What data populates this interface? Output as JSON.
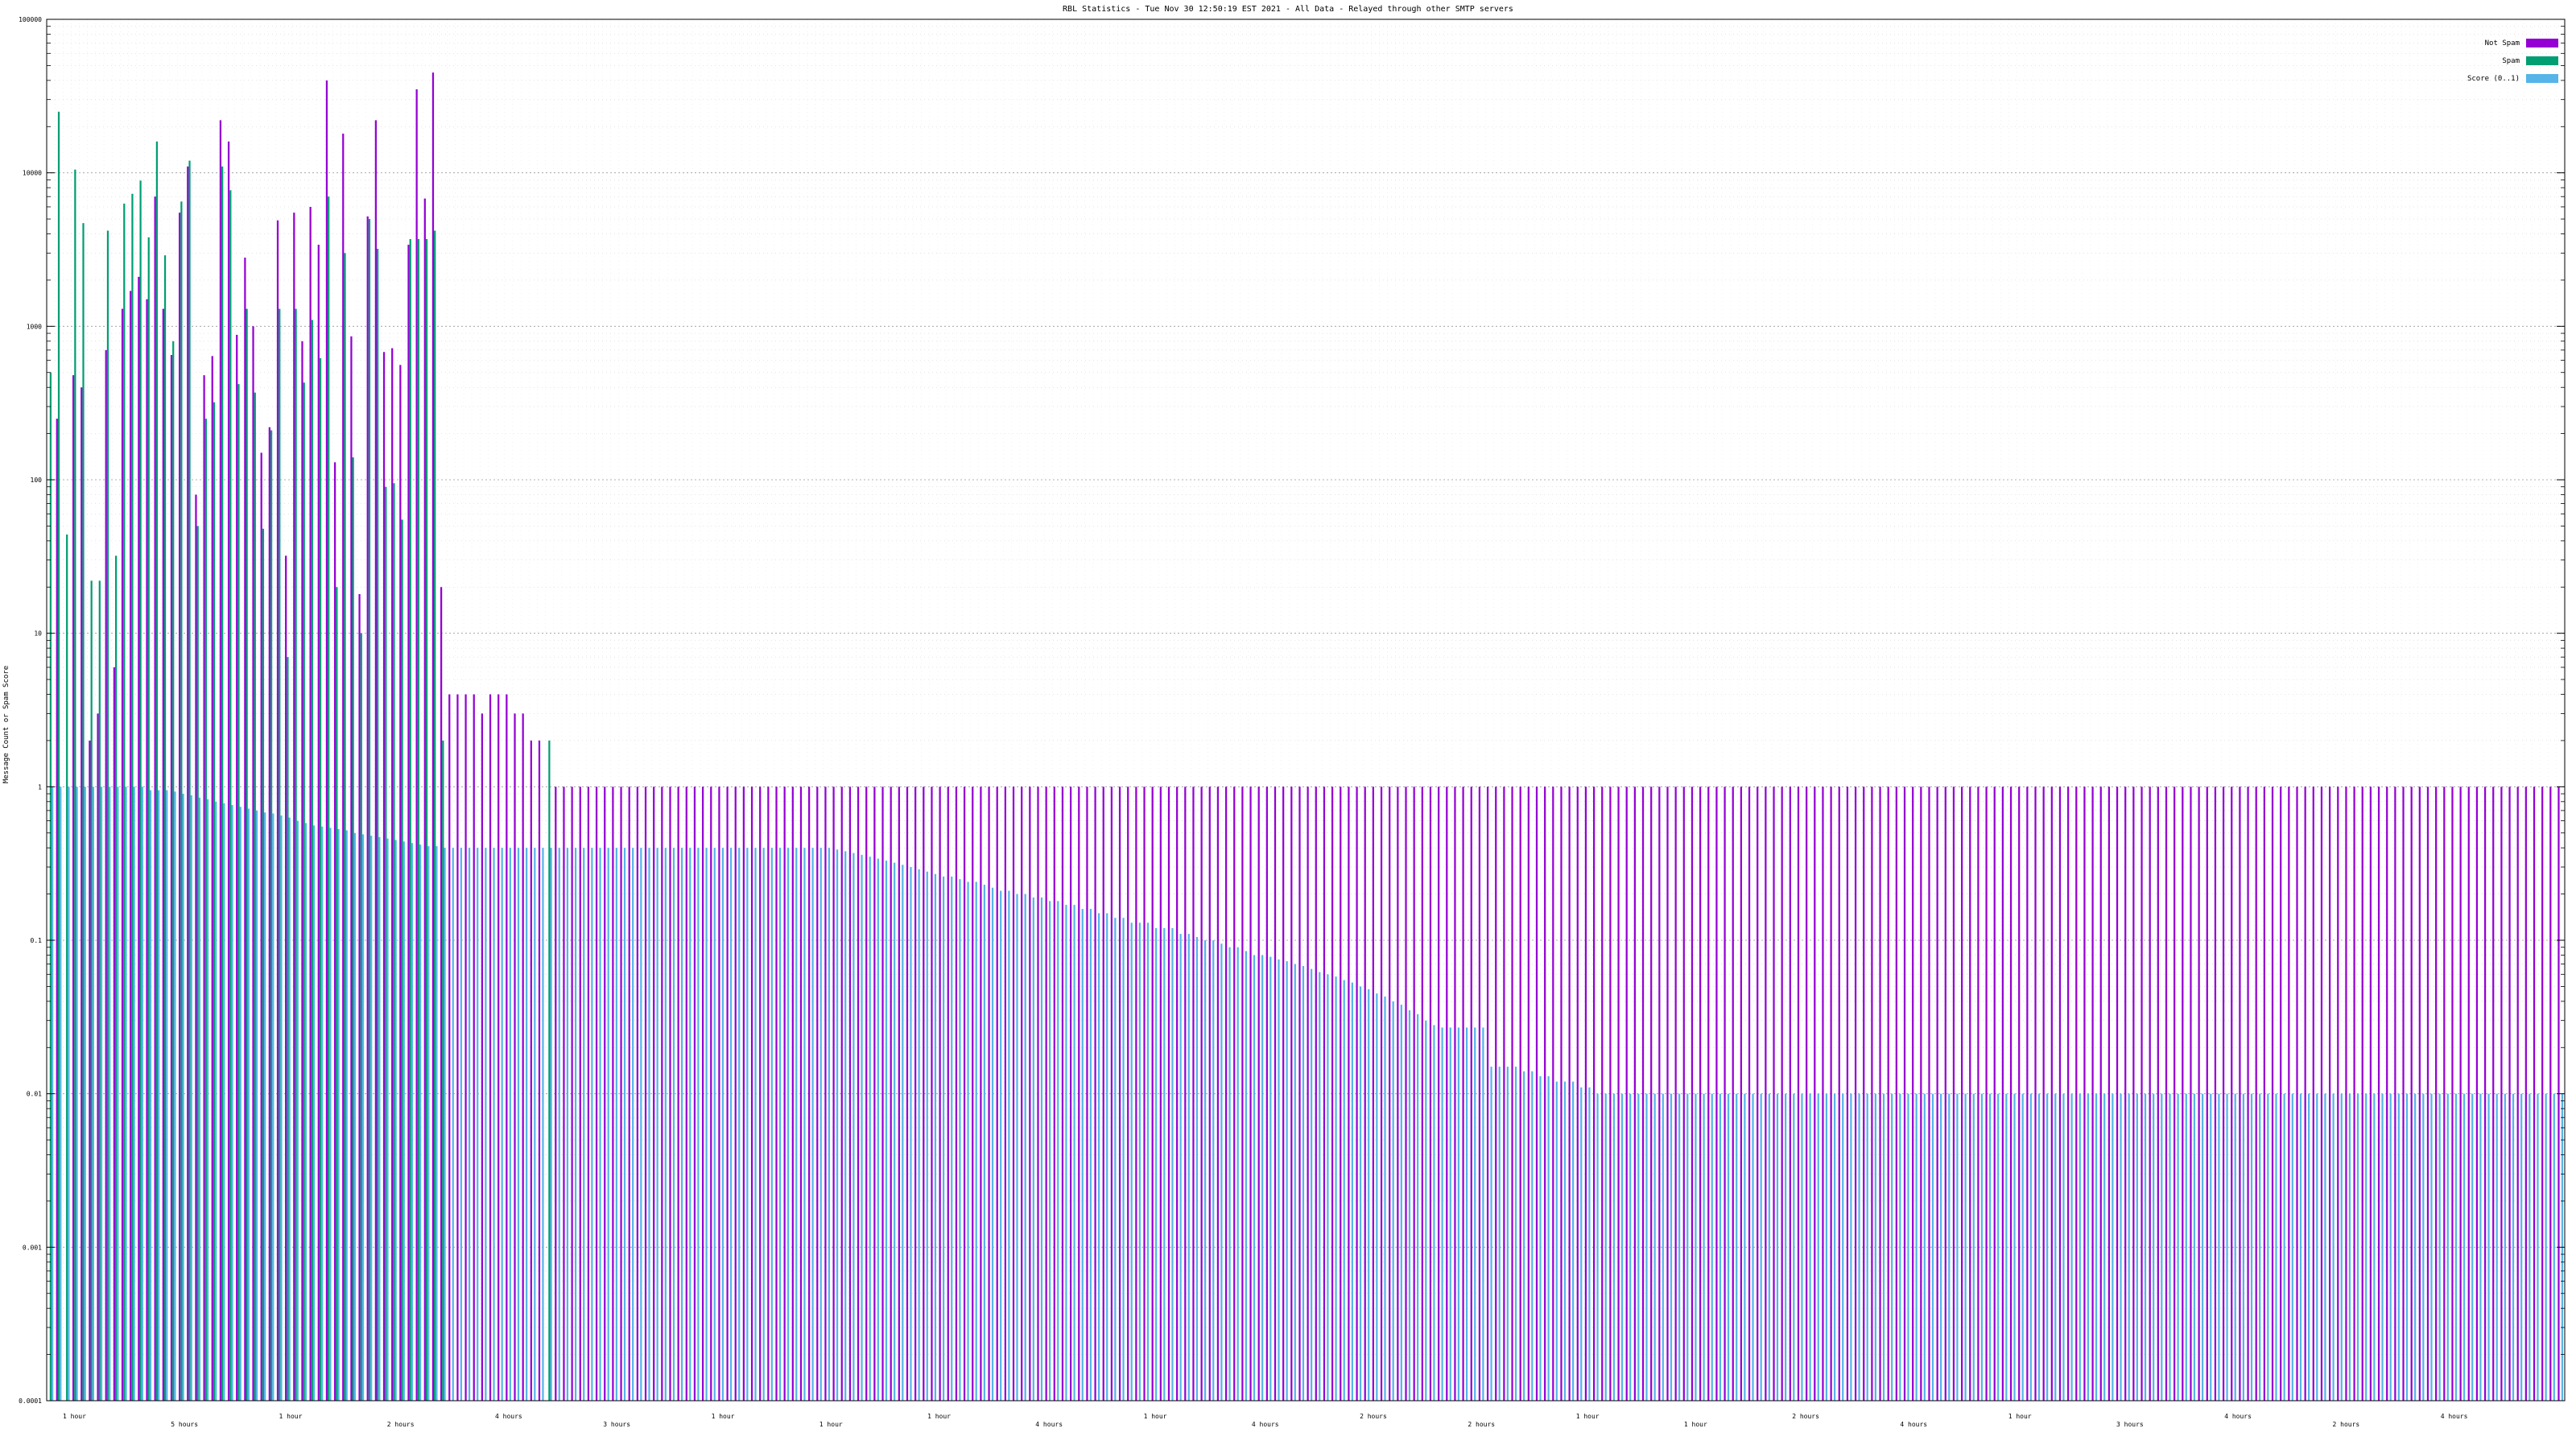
{
  "chart_data": {
    "type": "bar",
    "title": "RBL Statistics - Tue Nov 30 12:50:19 EST 2021 - All Data - Relayed through other SMTP servers",
    "ylabel": "Message Count or Spam Score",
    "xlabel": "",
    "yscale": "log",
    "ylim": [
      0.0001,
      100000
    ],
    "yticks": [
      "0.0001",
      "0.001",
      "0.01",
      "0.1",
      "1",
      "10",
      "100",
      "1000",
      "10000",
      "100000"
    ],
    "grid": true,
    "legend_position": "top-right",
    "colors": {
      "not_spam": "#9400d3",
      "spam": "#009e73",
      "score": "#56b4e9"
    },
    "series": [
      {
        "name": "Not Spam",
        "values": [
          0,
          250,
          0,
          480,
          400,
          2,
          3,
          700,
          6,
          1300,
          1700,
          2100,
          1500,
          7000,
          1300,
          650,
          5500,
          11000,
          80,
          480,
          640,
          22000,
          16000,
          880,
          2800,
          1000,
          150,
          220,
          4900,
          32,
          5500,
          800,
          6000,
          3400,
          40000,
          130,
          18000,
          860,
          18,
          5200,
          22000,
          680,
          720,
          560,
          3400,
          35000,
          6800,
          45000,
          20,
          4,
          4,
          4,
          4,
          3,
          4,
          4,
          4,
          3,
          3,
          2,
          2,
          0,
          1,
          1,
          1,
          1,
          1,
          1,
          1,
          1,
          1,
          1,
          1,
          1,
          1,
          1,
          1,
          1,
          1,
          1,
          1,
          1,
          1,
          1,
          1,
          1,
          1,
          1,
          1,
          1,
          1,
          1,
          1,
          1,
          1,
          1,
          1,
          1,
          1,
          1,
          1,
          1,
          1,
          1,
          1,
          1,
          1,
          1,
          1,
          1,
          1,
          1,
          1,
          1,
          1,
          1,
          1,
          1,
          1,
          1,
          1,
          1,
          1,
          1,
          1,
          1,
          1,
          1,
          1,
          1,
          1,
          1,
          1,
          1,
          1,
          1,
          1,
          1,
          1,
          1,
          1,
          1,
          1,
          1,
          1,
          1,
          1,
          1,
          1,
          1,
          1,
          1,
          1,
          1,
          1,
          1,
          1,
          1,
          1,
          1,
          1,
          1,
          1,
          1,
          1,
          1,
          1,
          1,
          1,
          1,
          1,
          1,
          1,
          1,
          1,
          1,
          1,
          1,
          1,
          1,
          1,
          1,
          1,
          1,
          1,
          1,
          1,
          1,
          1,
          1,
          1,
          1,
          1,
          1,
          1,
          1,
          1,
          1,
          1,
          1,
          1,
          1,
          1,
          1,
          1,
          1,
          1,
          1,
          1,
          1,
          1,
          1,
          1,
          1,
          1,
          1,
          1,
          1,
          1,
          1,
          1,
          1,
          1,
          1,
          1,
          1,
          1,
          1,
          1,
          1,
          1,
          1,
          1,
          1,
          1,
          1,
          1,
          1,
          1,
          1,
          1,
          1,
          1,
          1,
          1,
          1,
          1,
          1,
          1,
          1,
          1,
          1,
          1,
          1,
          1,
          1,
          1,
          1,
          1,
          1,
          1,
          1,
          1,
          1,
          1,
          1,
          1,
          1,
          1,
          1,
          1,
          1,
          1,
          1,
          1,
          1,
          1,
          1,
          1,
          1,
          1,
          1,
          1,
          1,
          1,
          1,
          1,
          1,
          1,
          1,
          1,
          1,
          1,
          1,
          1,
          1,
          1,
          1,
          1,
          1,
          1,
          1,
          1,
          1,
          1,
          1,
          1,
          1
        ],
        "values_note_free": true
      },
      {
        "name": "Spam",
        "values": [
          500,
          25000,
          44,
          10500,
          4700,
          22,
          22,
          4200,
          32,
          6300,
          7300,
          8900,
          3800,
          16000,
          2900,
          800,
          6500,
          12000,
          50,
          250,
          320,
          11000,
          7700,
          420,
          1300,
          370,
          48,
          210,
          1300,
          7,
          1300,
          430,
          1100,
          620,
          7000,
          20,
          3000,
          140,
          10,
          5000,
          3200,
          90,
          95,
          55,
          3700,
          3700,
          3700,
          4200,
          2,
          0,
          0,
          0,
          0,
          0,
          0,
          0,
          0,
          0,
          0,
          0,
          0,
          2,
          0,
          0,
          0,
          0,
          0,
          0,
          0,
          0,
          0,
          0,
          0,
          0,
          0,
          0,
          0,
          0,
          0,
          0,
          0,
          0,
          0,
          0,
          0,
          0,
          0,
          0,
          0,
          0,
          0,
          0,
          0,
          0,
          0,
          0,
          0,
          0,
          0,
          0,
          0,
          0,
          0,
          0,
          0,
          0,
          0,
          0,
          0,
          0,
          0,
          0,
          0,
          0,
          0,
          0,
          0,
          0,
          0,
          0,
          0,
          0,
          0,
          0,
          0,
          0,
          0,
          0,
          0,
          0,
          0,
          0,
          0,
          0,
          0,
          0,
          0,
          0,
          0,
          0,
          0,
          0,
          0,
          0,
          0,
          0,
          0,
          0,
          0,
          0,
          0,
          0,
          0,
          0,
          0,
          0,
          0,
          0,
          0,
          0,
          0,
          0,
          0,
          0,
          0,
          0,
          0,
          0,
          0,
          0,
          0,
          0,
          0,
          0,
          0,
          0,
          0,
          0,
          0,
          0,
          0,
          0,
          0,
          0,
          0,
          0,
          0,
          0,
          0,
          0,
          0,
          0,
          0,
          0,
          0,
          0,
          0,
          0,
          0,
          0,
          0,
          0,
          0,
          0,
          0,
          0,
          0,
          0,
          0,
          0,
          0,
          0,
          0,
          0,
          0,
          0,
          0,
          0,
          0,
          0,
          0,
          0,
          0,
          0,
          0,
          0,
          0,
          0,
          0,
          0,
          0,
          0,
          0,
          0,
          0,
          0,
          0,
          0,
          0,
          0,
          0,
          0,
          0,
          0,
          0,
          0,
          0,
          0,
          0,
          0,
          0,
          0,
          0,
          0,
          0,
          0,
          0,
          0,
          0,
          0,
          0,
          0,
          0,
          0,
          0,
          0,
          0,
          0,
          0,
          0,
          0,
          0,
          0,
          0,
          0,
          0,
          0,
          0,
          0,
          0,
          0,
          0,
          0
        ]
      },
      {
        "name": "Score (0..1)",
        "values": [
          1,
          1,
          1,
          1,
          1,
          1,
          1,
          1,
          1,
          1,
          1,
          1,
          0.95,
          0.95,
          0.95,
          0.93,
          0.9,
          0.88,
          0.85,
          0.83,
          0.8,
          0.78,
          0.76,
          0.74,
          0.72,
          0.7,
          0.68,
          0.67,
          0.65,
          0.63,
          0.6,
          0.58,
          0.56,
          0.55,
          0.54,
          0.53,
          0.52,
          0.5,
          0.49,
          0.48,
          0.47,
          0.46,
          0.45,
          0.44,
          0.43,
          0.42,
          0.41,
          0.41,
          0.4,
          0.4,
          0.4,
          0.4,
          0.4,
          0.4,
          0.4,
          0.4,
          0.4,
          0.4,
          0.4,
          0.4,
          0.4,
          0.4,
          0.4,
          0.4,
          0.4,
          0.4,
          0.4,
          0.4,
          0.4,
          0.4,
          0.4,
          0.4,
          0.4,
          0.4,
          0.4,
          0.4,
          0.4,
          0.4,
          0.4,
          0.4,
          0.4,
          0.4,
          0.4,
          0.4,
          0.4,
          0.4,
          0.4,
          0.4,
          0.4,
          0.4,
          0.4,
          0.4,
          0.4,
          0.4,
          0.4,
          0.4,
          0.39,
          0.38,
          0.37,
          0.36,
          0.35,
          0.34,
          0.33,
          0.32,
          0.31,
          0.3,
          0.29,
          0.28,
          0.27,
          0.26,
          0.26,
          0.25,
          0.24,
          0.24,
          0.23,
          0.22,
          0.21,
          0.21,
          0.2,
          0.2,
          0.19,
          0.19,
          0.18,
          0.18,
          0.17,
          0.17,
          0.16,
          0.16,
          0.15,
          0.15,
          0.14,
          0.14,
          0.13,
          0.13,
          0.13,
          0.12,
          0.12,
          0.12,
          0.11,
          0.11,
          0.105,
          0.1,
          0.1,
          0.095,
          0.09,
          0.09,
          0.085,
          0.08,
          0.08,
          0.078,
          0.075,
          0.073,
          0.07,
          0.068,
          0.065,
          0.062,
          0.06,
          0.058,
          0.055,
          0.053,
          0.05,
          0.048,
          0.045,
          0.043,
          0.04,
          0.038,
          0.035,
          0.033,
          0.03,
          0.028,
          0.027,
          0.027,
          0.027,
          0.027,
          0.027,
          0.027,
          0.015,
          0.015,
          0.015,
          0.015,
          0.014,
          0.014,
          0.013,
          0.013,
          0.012,
          0.012,
          0.012,
          0.011,
          0.011,
          0.01,
          0.01,
          0.01,
          0.01,
          0.01,
          0.01,
          0.01,
          0.01,
          0.01,
          0.01,
          0.01,
          0.01,
          0.01,
          0.01,
          0.01,
          0.01,
          0.01,
          0.01,
          0.01,
          0.01,
          0.01,
          0.01,
          0.01,
          0.01,
          0.01,
          0.01,
          0.01,
          0.01,
          0.01,
          0.01,
          0.01,
          0.01,
          0.01,
          0.01,
          0.01,
          0.01,
          0.01,
          0.01,
          0.01,
          0.01,
          0.01,
          0.01,
          0.01,
          0.01,
          0.01,
          0.01,
          0.01,
          0.01,
          0.01,
          0.01,
          0.01,
          0.01,
          0.01,
          0.01,
          0.01,
          0.01,
          0.01,
          0.01,
          0.01,
          0.01,
          0.01,
          0.01,
          0.01,
          0.01,
          0.01,
          0.01,
          0.01,
          0.01,
          0.01,
          0.01,
          0.01,
          0.01,
          0.01,
          0.01,
          0.01,
          0.01,
          0.01,
          0.01,
          0.01,
          0.01,
          0.01,
          0.01,
          0.01,
          0.01,
          0.01,
          0.01,
          0.01,
          0.01,
          0.01,
          0.01,
          0.01,
          0.01,
          0.01,
          0.01,
          0.01,
          0.01,
          0.01,
          0.01,
          0.01,
          0.01,
          0.01,
          0.01,
          0.01,
          0.01,
          0.01,
          0.01,
          0.01,
          0.01,
          0.01,
          0.01,
          0.01,
          0.01,
          0.01,
          0.01,
          0.01,
          0.01,
          0.01,
          0.01,
          0.01,
          0.01,
          0.01,
          0.01,
          0.01,
          0.01,
          0.01,
          0.01,
          0.01,
          0.01,
          0.01
        ]
      }
    ],
    "x_group_labels": [
      "1 hour",
      "5 hours",
      "1 hour",
      "2 hours",
      "4 hours",
      "3 hours",
      "1 hour",
      "1 hour",
      "1 hour",
      "4 hours",
      "1 hour",
      "4 hours",
      "2 hours",
      "2 hours",
      "1 hour",
      "1 hour",
      "2 hours",
      "4 hours",
      "1 hour",
      "3 hours",
      "4 hours",
      "2 hours",
      "4 hours"
    ]
  }
}
